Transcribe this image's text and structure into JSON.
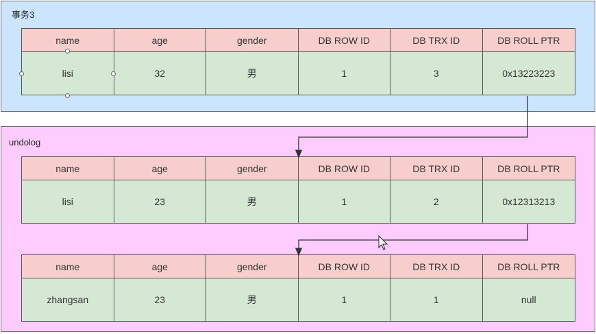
{
  "transaction": {
    "label": "事务3",
    "headers": [
      "name",
      "age",
      "gender",
      "DB ROW ID",
      "DB TRX ID",
      "DB ROLL PTR"
    ],
    "values": [
      "lisi",
      "32",
      "男",
      "1",
      "3",
      "0x13223223"
    ]
  },
  "undolog": {
    "label": "undolog",
    "records": [
      {
        "headers": [
          "name",
          "age",
          "gender",
          "DB ROW ID",
          "DB TRX ID",
          "DB ROLL PTR"
        ],
        "values": [
          "lisi",
          "23",
          "男",
          "1",
          "2",
          "0x12313213"
        ]
      },
      {
        "headers": [
          "name",
          "age",
          "gender",
          "DB ROW ID",
          "DB TRX ID",
          "DB ROLL PTR"
        ],
        "values": [
          "zhangsan",
          "23",
          "男",
          "1",
          "1",
          "null"
        ]
      }
    ]
  },
  "colors": {
    "transaction_bg": "#cce5ff",
    "undolog_bg": "#ffccff",
    "header_bg": "#f8cecc",
    "value_bg": "#d5e8d4"
  }
}
